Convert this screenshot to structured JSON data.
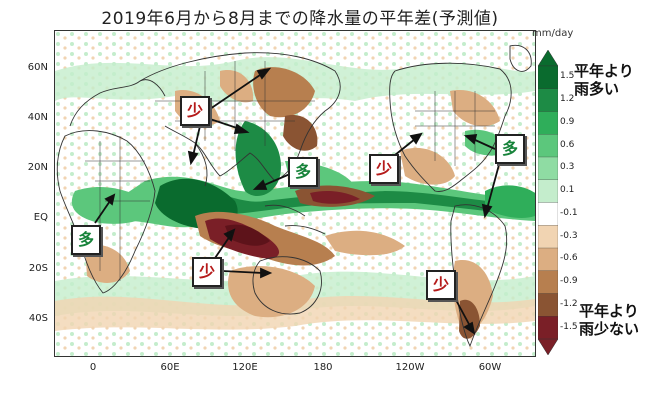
{
  "title": "2019年6月から8月までの降水量の平年差(予測値)",
  "unit": "mm/day",
  "colorbar": {
    "ticks": [
      "1.5",
      "1.2",
      "0.9",
      "0.6",
      "0.3",
      "0.1",
      "-0.1",
      "-0.3",
      "-0.6",
      "-0.9",
      "-1.2",
      "-1.5"
    ],
    "colors": [
      "#0a6b2e",
      "#1d8b45",
      "#2fae5a",
      "#5cc77c",
      "#8fdca3",
      "#c4edcc",
      "#ffffff",
      "#f1d4b2",
      "#dcae82",
      "#b77f4f",
      "#8a5433",
      "#7a1f27"
    ],
    "top_label": [
      "平年より",
      "雨多い"
    ],
    "bottom_label": [
      "平年より",
      "雨少ない"
    ]
  },
  "axes": {
    "lat_labels": [
      "60N",
      "40N",
      "20N",
      "EQ",
      "20S",
      "40S"
    ],
    "lon_labels": [
      "0",
      "60E",
      "120E",
      "180",
      "120W",
      "60W"
    ]
  },
  "annotations": [
    {
      "id": "dry-asia",
      "text": "少",
      "kind": "dry"
    },
    {
      "id": "wet-pacific",
      "text": "多",
      "kind": "wet"
    },
    {
      "id": "dry-namerica",
      "text": "少",
      "kind": "dry"
    },
    {
      "id": "wet-atlantic",
      "text": "多",
      "kind": "wet"
    },
    {
      "id": "wet-africa",
      "text": "多",
      "kind": "wet"
    },
    {
      "id": "dry-indian",
      "text": "少",
      "kind": "dry"
    },
    {
      "id": "dry-samerica",
      "text": "少",
      "kind": "dry"
    }
  ]
}
